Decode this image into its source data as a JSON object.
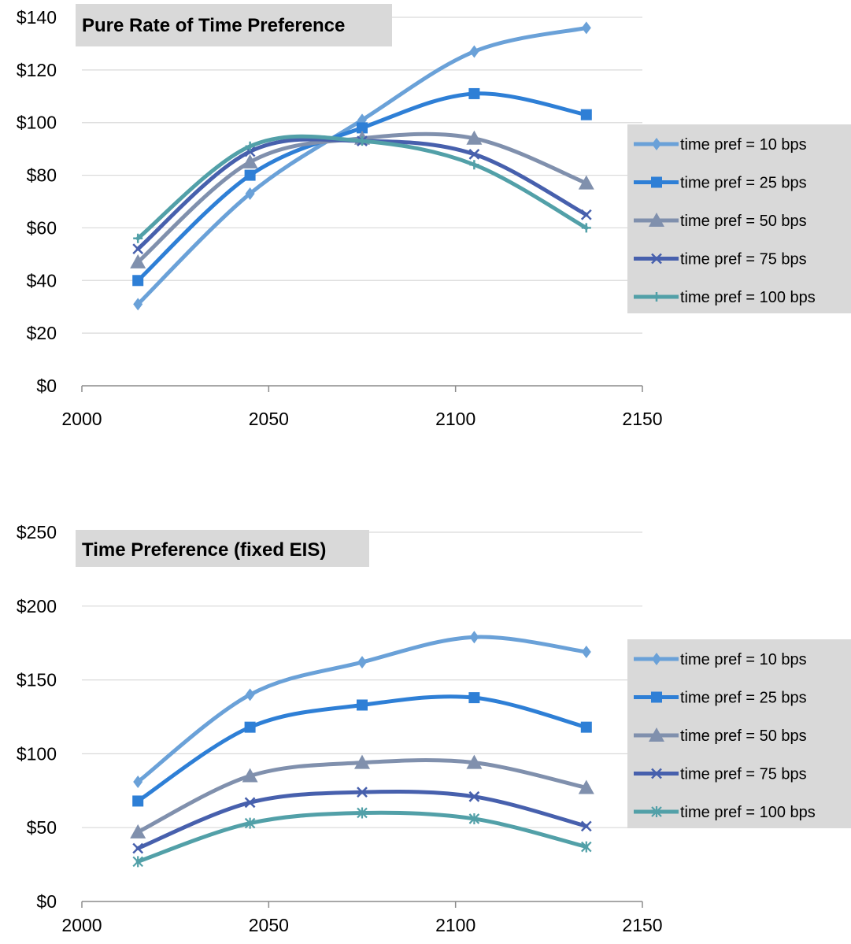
{
  "chart_data": [
    {
      "type": "line",
      "title": "Pure Rate of Time Preference",
      "xlabel": "",
      "ylabel": "",
      "xlim": [
        2000,
        2150
      ],
      "ylim": [
        0,
        140
      ],
      "x_ticks": [
        "2000",
        "2050",
        "2100",
        "2150"
      ],
      "y_ticks": [
        "$0",
        "$20",
        "$40",
        "$60",
        "$80",
        "$100",
        "$120",
        "$140"
      ],
      "grid": "horizontal",
      "legend_position": "right",
      "x": [
        2015,
        2045,
        2075,
        2105,
        2135
      ],
      "series": [
        {
          "name": "time pref = 10 bps",
          "values": [
            31,
            73,
            101,
            127,
            136
          ],
          "color": "#6aa1d8",
          "marker": "diamond"
        },
        {
          "name": "time pref = 25 bps",
          "values": [
            40,
            80,
            98,
            111,
            103
          ],
          "color": "#2e7fd6",
          "marker": "square"
        },
        {
          "name": "time pref = 50 bps",
          "values": [
            47,
            85,
            94,
            94,
            77
          ],
          "color": "#8090ad",
          "marker": "triangle"
        },
        {
          "name": "time pref = 75 bps",
          "values": [
            52,
            89,
            93,
            88,
            65
          ],
          "color": "#4760ad",
          "marker": "x"
        },
        {
          "name": "time pref = 100 bps",
          "values": [
            56,
            91,
            93,
            84,
            60
          ],
          "color": "#52a0a8",
          "marker": "plus"
        }
      ]
    },
    {
      "type": "line",
      "title": "Time Preference (fixed EIS)",
      "xlabel": "",
      "ylabel": "",
      "xlim": [
        2000,
        2150
      ],
      "ylim": [
        0,
        250
      ],
      "x_ticks": [
        "2000",
        "2050",
        "2100",
        "2150"
      ],
      "y_ticks": [
        "$0",
        "$50",
        "$100",
        "$150",
        "$200",
        "$250"
      ],
      "grid": "horizontal",
      "legend_position": "right",
      "x": [
        2015,
        2045,
        2075,
        2105,
        2135
      ],
      "series": [
        {
          "name": "time pref = 10 bps",
          "values": [
            81,
            140,
            162,
            179,
            169
          ],
          "color": "#6aa1d8",
          "marker": "diamond"
        },
        {
          "name": "time pref = 25 bps",
          "values": [
            68,
            118,
            133,
            138,
            118
          ],
          "color": "#2e7fd6",
          "marker": "square"
        },
        {
          "name": "time pref = 50 bps",
          "values": [
            47,
            85,
            94,
            94,
            77
          ],
          "color": "#8090ad",
          "marker": "triangle"
        },
        {
          "name": "time pref = 75 bps",
          "values": [
            36,
            67,
            74,
            71,
            51
          ],
          "color": "#4760ad",
          "marker": "x"
        },
        {
          "name": "time pref = 100 bps",
          "values": [
            27,
            53,
            60,
            56,
            37
          ],
          "color": "#52a0a8",
          "marker": "asterisk"
        }
      ]
    }
  ]
}
